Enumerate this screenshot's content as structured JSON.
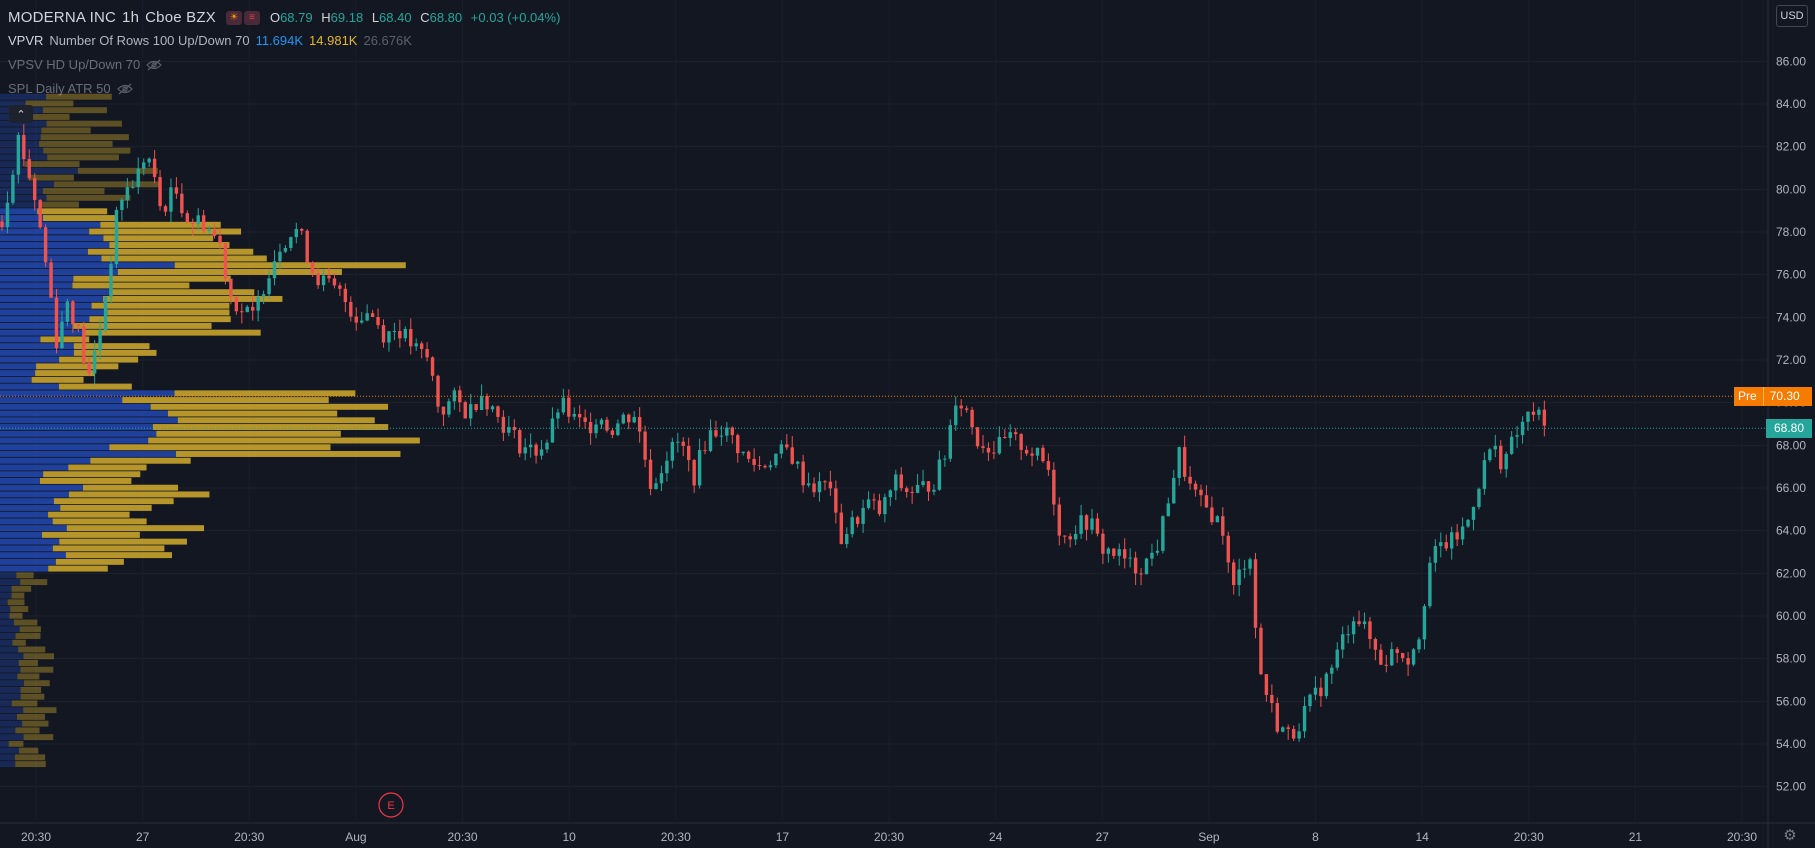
{
  "header": {
    "symbol_name": "MODERNA INC",
    "interval": "1h",
    "exchange": "Cboe BZX",
    "ohlc": {
      "o_label": "O",
      "o": "68.79",
      "h_label": "H",
      "h": "69.18",
      "l_label": "L",
      "l": "68.40",
      "c_label": "C",
      "c": "68.80",
      "change": "+0.03 (+0.04%)"
    }
  },
  "indicators": [
    {
      "name": "VPVR",
      "args": "Number Of Rows 100 Up/Down 70",
      "values": [
        "11.694K",
        "14.981K",
        "26.676K"
      ]
    },
    {
      "name": "VPSV HD Up/Down 70"
    },
    {
      "name": "SPL Daily ATR 50"
    }
  ],
  "collapse_glyph": "⌃",
  "currency": "USD",
  "pre_market": {
    "label": "Pre",
    "price": "70.30"
  },
  "last_price": "68.80",
  "earnings_marker": "E",
  "settings_icon": "gear-icon",
  "colors": {
    "background": "#131722",
    "up": "#26a69a",
    "down": "#ef5350",
    "vp_up": "#2962ff",
    "vp_down": "#e0b72d",
    "pre_line": "#f57c00",
    "last_line": "#26a69a"
  },
  "chart_data": {
    "type": "candlestick",
    "y_axis": {
      "min": 51,
      "max": 87,
      "ticks": [
        "52.00",
        "54.00",
        "56.00",
        "58.00",
        "60.00",
        "62.00",
        "64.00",
        "66.00",
        "68.00",
        "70.00",
        "72.00",
        "74.00",
        "76.00",
        "78.00",
        "80.00",
        "82.00",
        "84.00",
        "86.00"
      ]
    },
    "x_axis": {
      "labels": [
        "20:30",
        "27",
        "20:30",
        "Aug",
        "20:30",
        "10",
        "20:30",
        "17",
        "20:30",
        "24",
        "27",
        "Sep",
        "8",
        "14",
        "20:30",
        "21",
        "20:30"
      ]
    },
    "reference_lines": [
      {
        "label": "Pre",
        "price": 70.3
      },
      {
        "label": "Last",
        "price": 68.8
      }
    ],
    "price_path": [
      [
        0,
        78.5
      ],
      [
        0.06,
        82.5
      ],
      [
        0.12,
        79.5
      ],
      [
        0.17,
        75.5
      ],
      [
        0.2,
        72.5
      ],
      [
        0.23,
        75.0
      ],
      [
        0.27,
        73.5
      ],
      [
        0.31,
        71.0
      ],
      [
        0.36,
        74.0
      ],
      [
        0.42,
        79.5
      ],
      [
        0.48,
        80.5
      ],
      [
        0.52,
        81.8
      ],
      [
        0.57,
        79.0
      ],
      [
        0.62,
        80.0
      ],
      [
        0.67,
        78.5
      ],
      [
        0.72,
        78.5
      ],
      [
        0.78,
        77.5
      ],
      [
        0.82,
        75.0
      ],
      [
        0.86,
        74.3
      ],
      [
        0.9,
        74.0
      ],
      [
        0.95,
        76.0
      ],
      [
        1.0,
        77.5
      ],
      [
        1.06,
        78.2
      ],
      [
        1.12,
        76.0
      ],
      [
        1.17,
        75.5
      ],
      [
        1.22,
        75.0
      ],
      [
        1.27,
        74.0
      ],
      [
        1.32,
        74.3
      ],
      [
        1.37,
        73.2
      ],
      [
        1.42,
        73.5
      ],
      [
        1.48,
        72.5
      ],
      [
        1.53,
        72.0
      ],
      [
        1.57,
        69.5
      ],
      [
        1.62,
        70.2
      ],
      [
        1.67,
        69.5
      ],
      [
        1.72,
        70.5
      ],
      [
        1.77,
        69.5
      ],
      [
        1.81,
        68.8
      ],
      [
        1.86,
        68.0
      ],
      [
        1.91,
        67.7
      ],
      [
        1.96,
        68.3
      ],
      [
        2.0,
        70.0
      ],
      [
        2.05,
        69.2
      ],
      [
        2.1,
        68.8
      ],
      [
        2.14,
        69.5
      ],
      [
        2.18,
        68.7
      ],
      [
        2.23,
        69.3
      ],
      [
        2.27,
        69.5
      ],
      [
        2.33,
        66.0
      ],
      [
        2.38,
        67.5
      ],
      [
        2.43,
        68.2
      ],
      [
        2.48,
        66.5
      ],
      [
        2.53,
        68.5
      ],
      [
        2.58,
        68.8
      ],
      [
        2.62,
        68.3
      ],
      [
        2.67,
        67.3
      ],
      [
        2.72,
        67.0
      ],
      [
        2.77,
        67.5
      ],
      [
        2.82,
        67.8
      ],
      [
        2.87,
        66.5
      ],
      [
        2.92,
        66.0
      ],
      [
        2.97,
        66.2
      ],
      [
        3.0,
        63.5
      ],
      [
        3.06,
        64.5
      ],
      [
        3.11,
        65.3
      ],
      [
        3.15,
        64.8
      ],
      [
        3.2,
        66.3
      ],
      [
        3.25,
        65.8
      ],
      [
        3.3,
        66.0
      ],
      [
        3.34,
        66.3
      ],
      [
        3.38,
        67.5
      ],
      [
        3.42,
        70.3
      ],
      [
        3.46,
        69.6
      ],
      [
        3.5,
        68.2
      ],
      [
        3.56,
        67.8
      ],
      [
        3.61,
        68.3
      ],
      [
        3.66,
        68.0
      ],
      [
        3.71,
        67.5
      ],
      [
        3.75,
        67.0
      ],
      [
        3.8,
        63.5
      ],
      [
        3.85,
        64.2
      ],
      [
        3.9,
        64.5
      ],
      [
        3.94,
        63.2
      ],
      [
        3.98,
        63.0
      ],
      [
        4.02,
        62.7
      ],
      [
        4.06,
        62.2
      ],
      [
        4.11,
        62.6
      ],
      [
        4.15,
        63.5
      ],
      [
        4.18,
        65.5
      ],
      [
        4.22,
        67.6
      ],
      [
        4.26,
        66.0
      ],
      [
        4.3,
        65.2
      ],
      [
        4.34,
        64.8
      ],
      [
        4.38,
        64.0
      ],
      [
        4.41,
        61.0
      ],
      [
        4.45,
        62.5
      ],
      [
        4.48,
        63.0
      ],
      [
        4.5,
        58.0
      ],
      [
        4.53,
        56.5
      ],
      [
        4.57,
        55.0
      ],
      [
        4.62,
        54.3
      ],
      [
        4.67,
        55.5
      ],
      [
        4.72,
        56.5
      ],
      [
        4.76,
        57.3
      ],
      [
        4.81,
        59.0
      ],
      [
        4.85,
        60.2
      ],
      [
        4.9,
        59.0
      ],
      [
        4.95,
        57.8
      ],
      [
        5.0,
        58.5
      ],
      [
        5.04,
        58.0
      ],
      [
        5.08,
        59.2
      ],
      [
        5.12,
        62.5
      ],
      [
        5.16,
        63.3
      ],
      [
        5.2,
        63.5
      ],
      [
        5.25,
        64.2
      ],
      [
        5.3,
        66.5
      ],
      [
        5.34,
        68.0
      ],
      [
        5.38,
        67.2
      ],
      [
        5.42,
        68.2
      ],
      [
        5.46,
        69.2
      ],
      [
        5.5,
        69.6
      ],
      [
        5.53,
        68.8
      ]
    ],
    "volume_profile": {
      "rows": 100,
      "up_down_percent": 70,
      "total_up": "11.694K",
      "total_down": "14.981K",
      "total": "26.676K"
    }
  }
}
